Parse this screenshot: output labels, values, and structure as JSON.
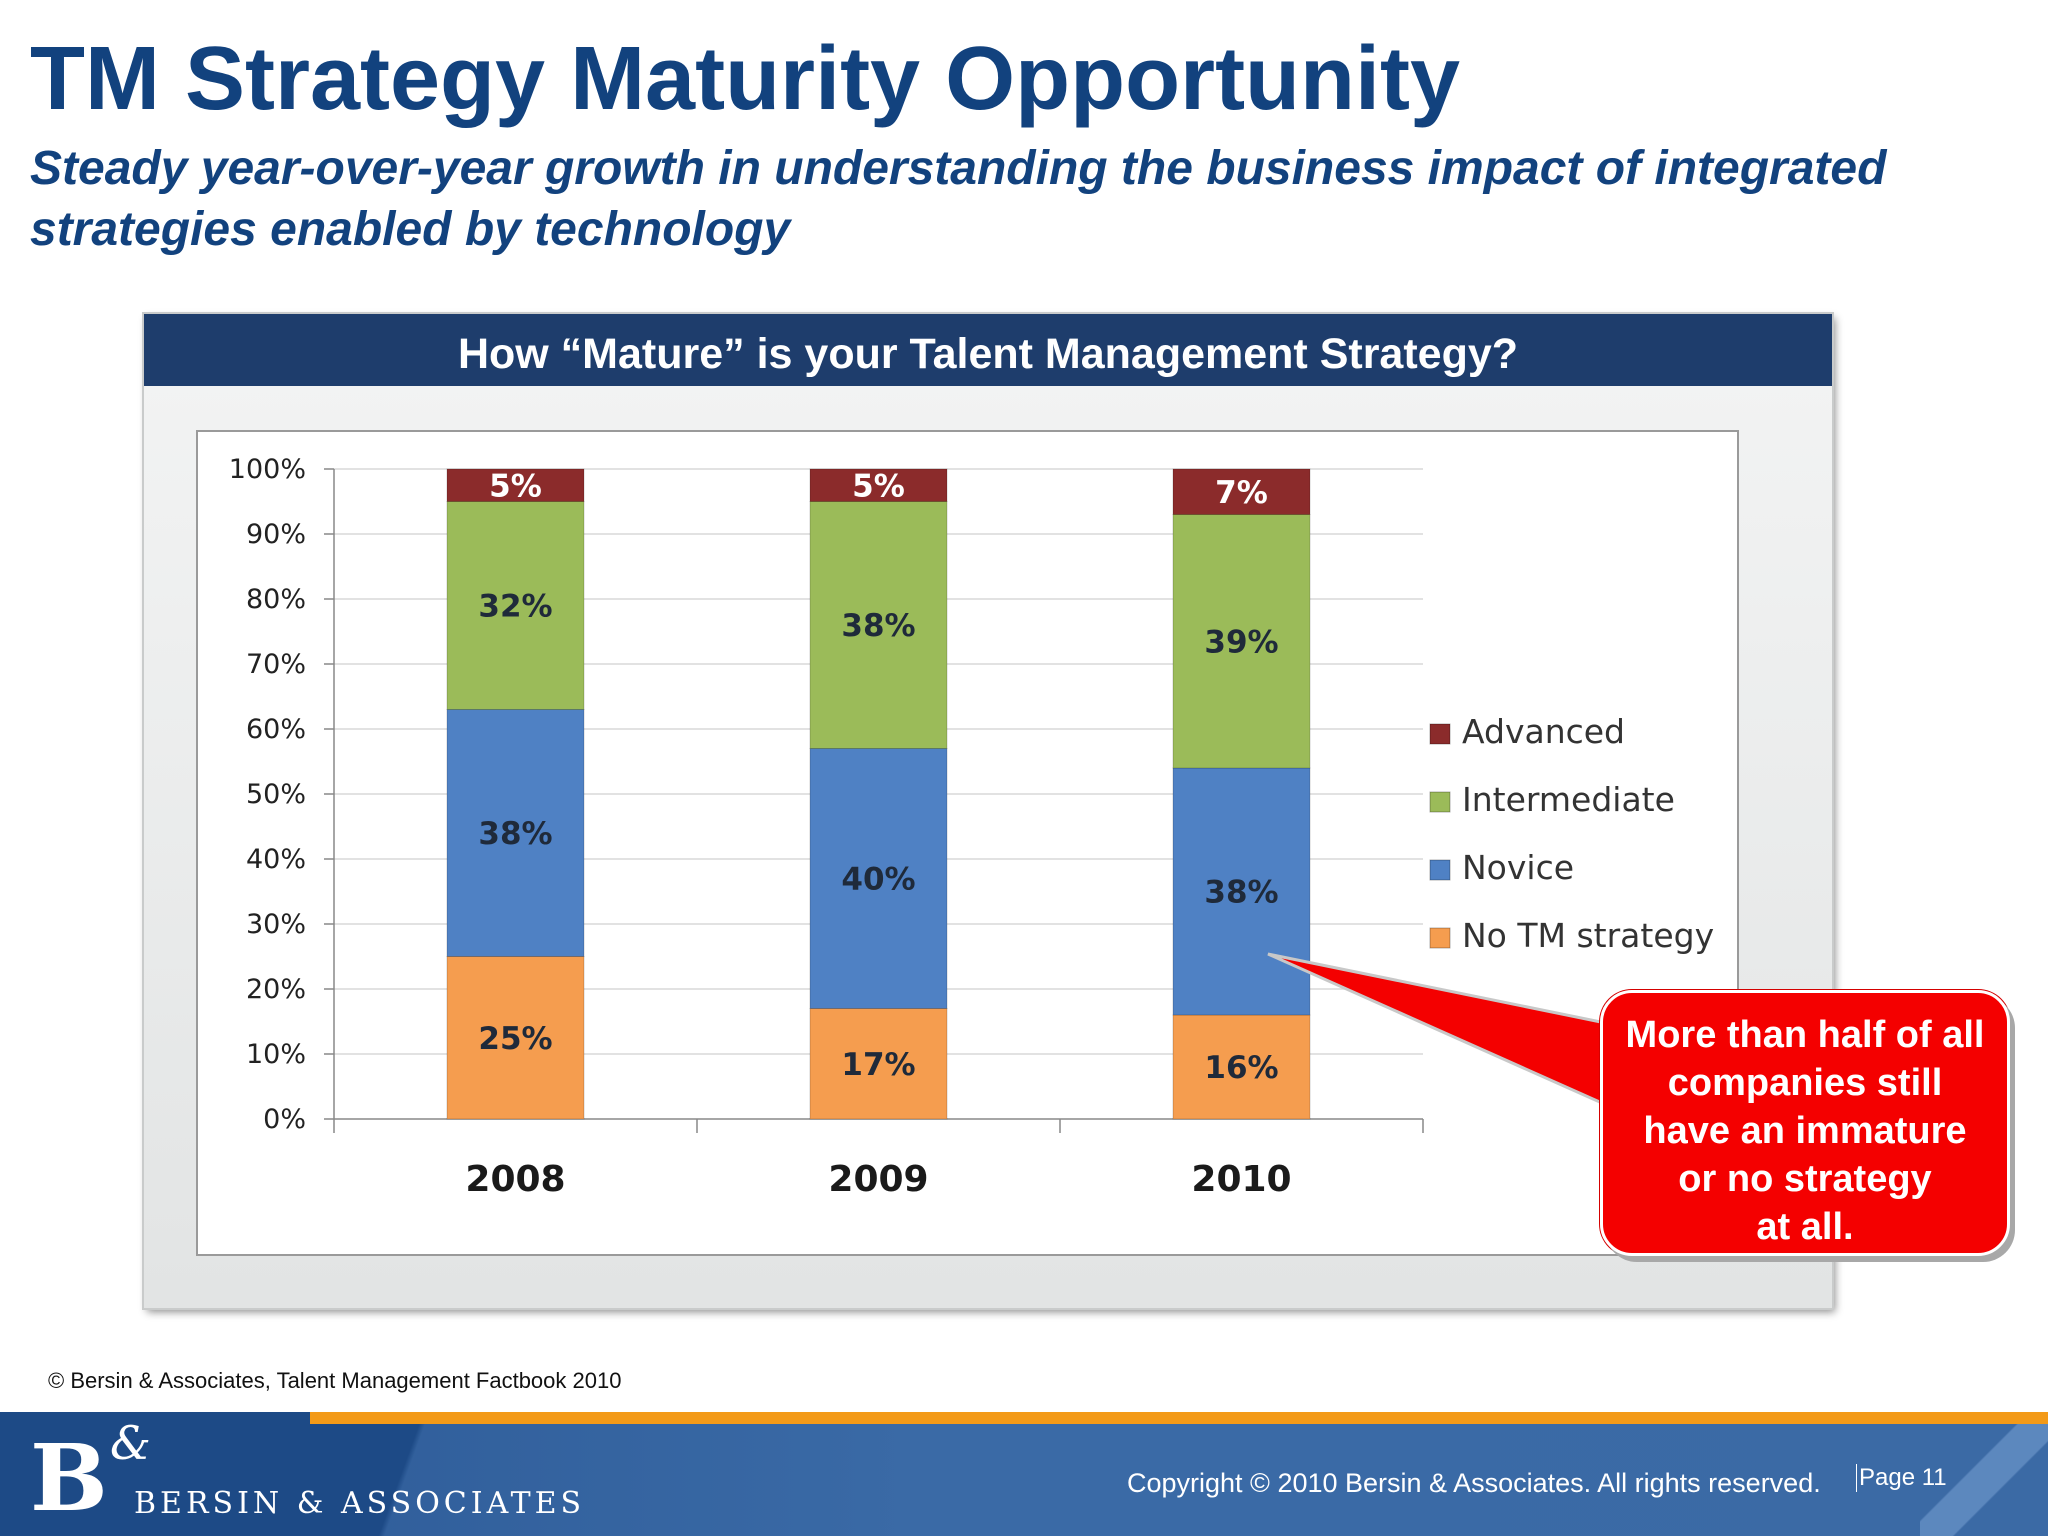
{
  "slide": {
    "title": "TM Strategy Maturity Opportunity",
    "subtitle": "Steady year-over-year growth in understanding the business impact of integrated strategies enabled by technology",
    "source": "© Bersin & Associates, Talent Management Factbook 2010"
  },
  "chart_data": {
    "type": "bar",
    "stacked": true,
    "title": "How “Mature” is your Talent Management Strategy?",
    "categories": [
      "2008",
      "2009",
      "2010"
    ],
    "series": [
      {
        "name": "No TM strategy",
        "values": [
          25,
          17,
          16
        ],
        "color": "#f59d4f"
      },
      {
        "name": "Novice",
        "values": [
          38,
          40,
          38
        ],
        "color": "#4f81c4"
      },
      {
        "name": "Intermediate",
        "values": [
          32,
          38,
          39
        ],
        "color": "#9bbb59"
      },
      {
        "name": "Advanced",
        "values": [
          5,
          5,
          7
        ],
        "color": "#8b2b2b"
      }
    ],
    "ylim": [
      0,
      100
    ],
    "yticks": [
      "0%",
      "10%",
      "20%",
      "30%",
      "40%",
      "50%",
      "60%",
      "70%",
      "80%",
      "90%",
      "100%"
    ],
    "value_suffix": "%",
    "grid": true,
    "legend_position": "right"
  },
  "callout": {
    "text": "More than half of all\ncompanies still\nhave an immature\nor no strategy\nat all."
  },
  "footer": {
    "logo_mark": "B",
    "logo_amp": "&",
    "logo_text": "BERSIN & ASSOCIATES",
    "copyright": "Copyright © 2010 Bersin & Associates. All rights reserved.",
    "page": "Page 11"
  },
  "colors": {
    "title": "#12427e",
    "panel_header": "#1e3d6c",
    "callout": "#f40000",
    "footer": "#2b5895",
    "footer_accent": "#f39a18"
  }
}
